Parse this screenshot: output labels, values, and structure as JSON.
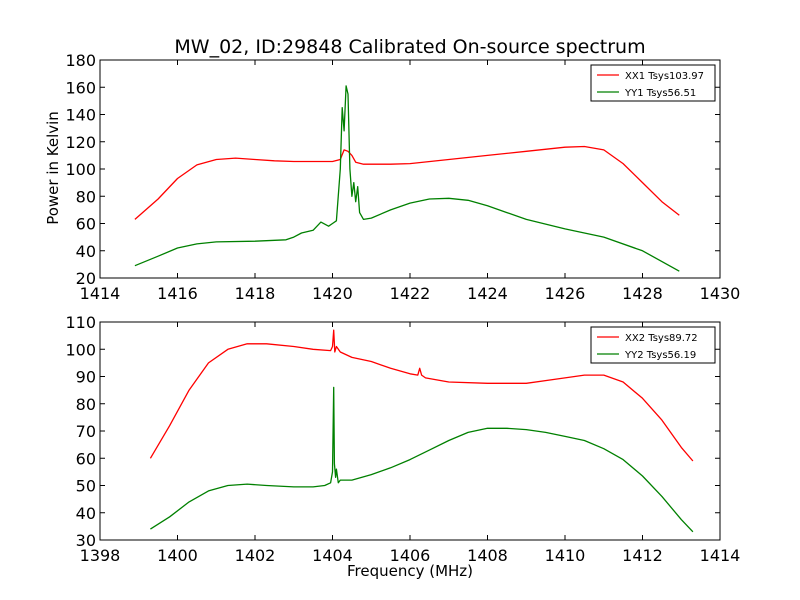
{
  "figure": {
    "title": "MW_02, ID:29848 Calibrated On-source spectrum",
    "ylabel": "Power in Kelvin",
    "xlabel": "Frequency (MHz)"
  },
  "chart_data": [
    {
      "type": "line",
      "title": "MW_02, ID:29848 Calibrated On-source spectrum",
      "xlabel": "",
      "ylabel": "Power in Kelvin",
      "xlim": [
        1414,
        1430
      ],
      "ylim": [
        20,
        180
      ],
      "xticks": [
        1414,
        1416,
        1418,
        1420,
        1422,
        1424,
        1426,
        1428,
        1430
      ],
      "yticks": [
        20,
        40,
        60,
        80,
        100,
        120,
        140,
        160,
        180
      ],
      "grid": false,
      "legend": "top-right",
      "series": [
        {
          "name": "XX1 Tsys103.97",
          "color": "#ff0000",
          "x": [
            1414.9,
            1415.5,
            1416.0,
            1416.5,
            1417.0,
            1417.5,
            1418.0,
            1418.5,
            1419.0,
            1419.5,
            1420.0,
            1420.2,
            1420.3,
            1420.4,
            1420.5,
            1420.6,
            1420.8,
            1421.5,
            1422.0,
            1423.0,
            1424.0,
            1425.0,
            1426.0,
            1426.5,
            1427.0,
            1427.5,
            1428.0,
            1428.5,
            1428.95
          ],
          "y": [
            63,
            78,
            93,
            103,
            107,
            108,
            107,
            106,
            105.5,
            105.5,
            105.5,
            107,
            114,
            113,
            110,
            105,
            103.5,
            103.5,
            104,
            107,
            110,
            113,
            116,
            116.5,
            114,
            104,
            90,
            76,
            66
          ]
        },
        {
          "name": "YY1 Tsys56.51",
          "color": "#008000",
          "x": [
            1414.9,
            1415.5,
            1416.0,
            1416.5,
            1417.0,
            1418.0,
            1418.8,
            1419.0,
            1419.2,
            1419.5,
            1419.7,
            1419.9,
            1420.0,
            1420.1,
            1420.2,
            1420.25,
            1420.3,
            1420.35,
            1420.4,
            1420.45,
            1420.5,
            1420.55,
            1420.6,
            1420.65,
            1420.7,
            1420.8,
            1421.0,
            1421.5,
            1422.0,
            1422.5,
            1423.0,
            1423.5,
            1424.0,
            1424.5,
            1425.0,
            1426.0,
            1427.0,
            1428.0,
            1428.95
          ],
          "y": [
            29,
            36,
            42,
            45,
            46.5,
            47,
            48,
            50,
            53,
            55,
            61,
            58,
            60,
            62,
            100,
            145,
            128,
            161,
            155,
            100,
            80,
            90,
            76,
            87,
            68,
            63,
            64,
            70,
            75,
            78,
            78.5,
            77,
            73,
            68,
            63,
            56,
            50,
            40,
            25
          ]
        }
      ]
    },
    {
      "type": "line",
      "title": "",
      "xlabel": "Frequency (MHz)",
      "ylabel": "",
      "xlim": [
        1398,
        1414
      ],
      "ylim": [
        30,
        110
      ],
      "xticks": [
        1398,
        1400,
        1402,
        1404,
        1406,
        1408,
        1410,
        1412,
        1414
      ],
      "yticks": [
        30,
        40,
        50,
        60,
        70,
        80,
        90,
        100,
        110
      ],
      "grid": false,
      "legend": "top-right",
      "series": [
        {
          "name": "XX2 Tsys89.72",
          "color": "#ff0000",
          "x": [
            1399.3,
            1399.8,
            1400.3,
            1400.8,
            1401.3,
            1401.8,
            1402.3,
            1403.0,
            1403.5,
            1403.95,
            1404.0,
            1404.03,
            1404.06,
            1404.1,
            1404.2,
            1404.5,
            1405.0,
            1405.5,
            1406.0,
            1406.2,
            1406.25,
            1406.3,
            1406.4,
            1407.0,
            1408.0,
            1409.0,
            1410.0,
            1410.5,
            1411.0,
            1411.5,
            1412.0,
            1412.5,
            1413.0,
            1413.3
          ],
          "y": [
            60,
            72,
            85,
            95,
            100,
            102,
            102,
            101,
            100,
            99.5,
            101,
            107,
            99,
            101,
            99,
            97,
            95.5,
            93,
            91,
            90.5,
            93,
            90.5,
            89.5,
            88,
            87.5,
            87.5,
            89.5,
            90.5,
            90.5,
            88,
            82,
            74,
            64,
            59
          ]
        },
        {
          "name": "YY2 Tsys56.19",
          "color": "#008000",
          "x": [
            1399.3,
            1399.8,
            1400.3,
            1400.8,
            1401.3,
            1401.8,
            1402.3,
            1403.0,
            1403.5,
            1403.8,
            1403.95,
            1404.0,
            1404.03,
            1404.05,
            1404.08,
            1404.1,
            1404.15,
            1404.2,
            1404.5,
            1405.0,
            1405.5,
            1406.0,
            1406.5,
            1407.0,
            1407.5,
            1408.0,
            1408.5,
            1409.0,
            1409.5,
            1410.0,
            1410.5,
            1411.0,
            1411.5,
            1412.0,
            1412.5,
            1413.0,
            1413.3
          ],
          "y": [
            34,
            38.5,
            44,
            48,
            50,
            50.5,
            50,
            49.5,
            49.5,
            50,
            51,
            55,
            86,
            58,
            53,
            56,
            51,
            52,
            52,
            54,
            56.5,
            59.5,
            63,
            66.5,
            69.5,
            71,
            71,
            70.5,
            69.5,
            68,
            66.5,
            63.5,
            59.5,
            53.5,
            46,
            37.5,
            33
          ]
        }
      ]
    }
  ]
}
